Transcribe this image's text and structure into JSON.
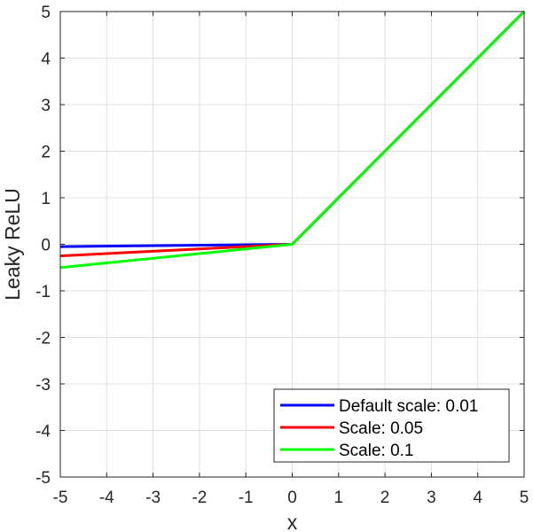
{
  "chart_data": {
    "type": "line",
    "xlabel": "x",
    "ylabel": "Leaky ReLU",
    "xlim": [
      -5,
      5
    ],
    "ylim": [
      -5,
      5
    ],
    "xticks": [
      -5,
      -4,
      -3,
      -2,
      -1,
      0,
      1,
      2,
      3,
      4,
      5
    ],
    "yticks": [
      -5,
      -4,
      -3,
      -2,
      -1,
      0,
      1,
      2,
      3,
      4,
      5
    ],
    "grid": true,
    "legend_position": "bottom-right",
    "series": [
      {
        "name": "Default scale: 0.01",
        "color": "#0000ff",
        "x": [
          -5,
          0,
          5
        ],
        "y": [
          -0.05,
          0,
          5
        ]
      },
      {
        "name": "Scale: 0.05",
        "color": "#ff0000",
        "x": [
          -5,
          0,
          5
        ],
        "y": [
          -0.25,
          0,
          5
        ]
      },
      {
        "name": "Scale: 0.1",
        "color": "#00ff00",
        "x": [
          -5,
          0,
          5
        ],
        "y": [
          -0.5,
          0,
          5
        ]
      }
    ]
  }
}
